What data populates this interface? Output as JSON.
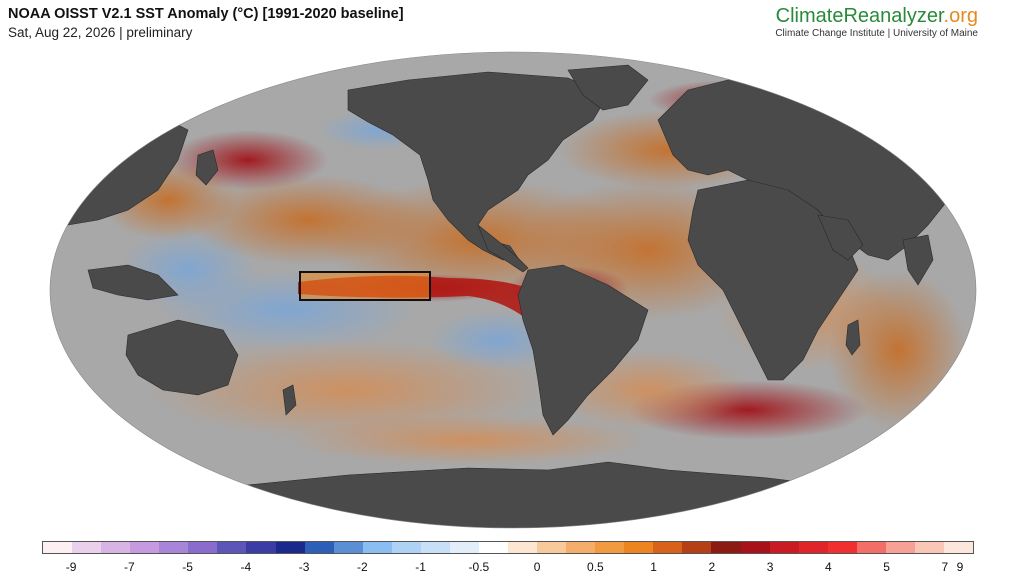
{
  "header": {
    "title": "NOAA OISST V2.1 SST Anomaly (°C) [1991-2020 baseline]",
    "subtitle": "Sat, Aug 22, 2026 | preliminary"
  },
  "brand": {
    "name_part1": "Climate",
    "name_part2": "Reanalyzer",
    "name_part3": ".org",
    "subtitle": "Climate Change Institute | University of Maine"
  },
  "map": {
    "projection": "robinson-like world",
    "land_color": "#4a4a4a",
    "ocean_base_color": "#a8a8a8",
    "highlight_box": "Niño 3.4 region outlined"
  },
  "colorbar": {
    "colors": [
      "#fdf0f3",
      "#ead0ea",
      "#d8b3e6",
      "#c79ae0",
      "#a985da",
      "#8a6ccc",
      "#5e55b8",
      "#3a3da5",
      "#1a2a8c",
      "#2e5fb8",
      "#5a8fd6",
      "#8abdf0",
      "#aed2f5",
      "#c8e0f7",
      "#e2eefa",
      "#ffffff",
      "#fde6d2",
      "#f8c99a",
      "#f4ad6a",
      "#f19a40",
      "#ec8420",
      "#d9621a",
      "#b54016",
      "#8c1a12",
      "#a8101a",
      "#c91b22",
      "#e0252a",
      "#f0302e",
      "#f36e66",
      "#f7a096",
      "#fac7b6",
      "#fde6dc"
    ],
    "tick_labels": [
      "-9",
      "-7",
      "-5",
      "-4",
      "-3",
      "-2",
      "-1",
      "-0.5",
      "0",
      "0.5",
      "1",
      "2",
      "3",
      "4",
      "5",
      "7",
      "9"
    ]
  }
}
